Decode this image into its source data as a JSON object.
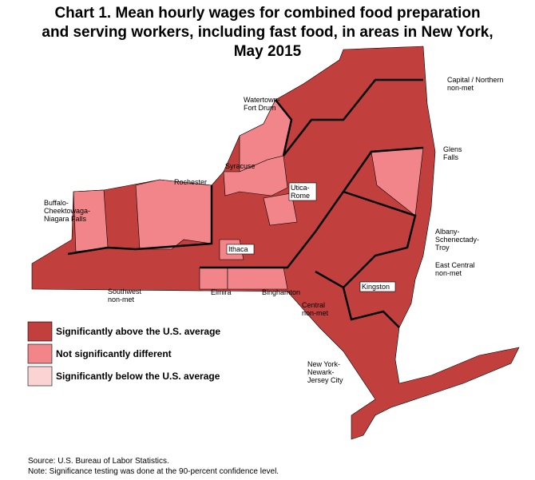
{
  "title_lines": [
    "Chart 1. Mean hourly wages for combined food preparation",
    "and serving workers, including fast food, in areas in New York,",
    "May 2015"
  ],
  "areas": [
    {
      "lines": [
        "Watertown-",
        "Fort Drum"
      ]
    },
    {
      "lines": [
        "Capital / Northern",
        "non-met"
      ]
    },
    {
      "lines": [
        "Glens",
        "Falls"
      ]
    },
    {
      "lines": [
        "Syracuse"
      ]
    },
    {
      "lines": [
        "Rochester"
      ]
    },
    {
      "lines": [
        "Utica-",
        "Rome"
      ]
    },
    {
      "lines": [
        "Buffalo-",
        "Cheektowaga-",
        "Niagara Falls"
      ]
    },
    {
      "lines": [
        "Albany-",
        "Schenectady-",
        "Troy"
      ]
    },
    {
      "lines": [
        "Ithaca"
      ]
    },
    {
      "lines": [
        "East Central",
        "non-met"
      ]
    },
    {
      "lines": [
        "Southwest",
        "non-met"
      ]
    },
    {
      "lines": [
        "Elmira"
      ]
    },
    {
      "lines": [
        "Binghamton"
      ]
    },
    {
      "lines": [
        "Kingston"
      ]
    },
    {
      "lines": [
        "Central",
        "non-met"
      ]
    },
    {
      "lines": [
        "New York-",
        "Newark-",
        "Jersey City"
      ]
    }
  ],
  "legend": [
    {
      "label": "Significantly above the U.S. average",
      "color": "#c1403d"
    },
    {
      "label": "Not significantly different",
      "color": "#f2858a"
    },
    {
      "label": "Significantly below the U.S. average",
      "color": "#fbd3d3"
    }
  ],
  "source": "Source: U.S. Bureau of Labor Statistics.",
  "note": "Note: Significance testing was done at the 90-percent confidence level."
}
